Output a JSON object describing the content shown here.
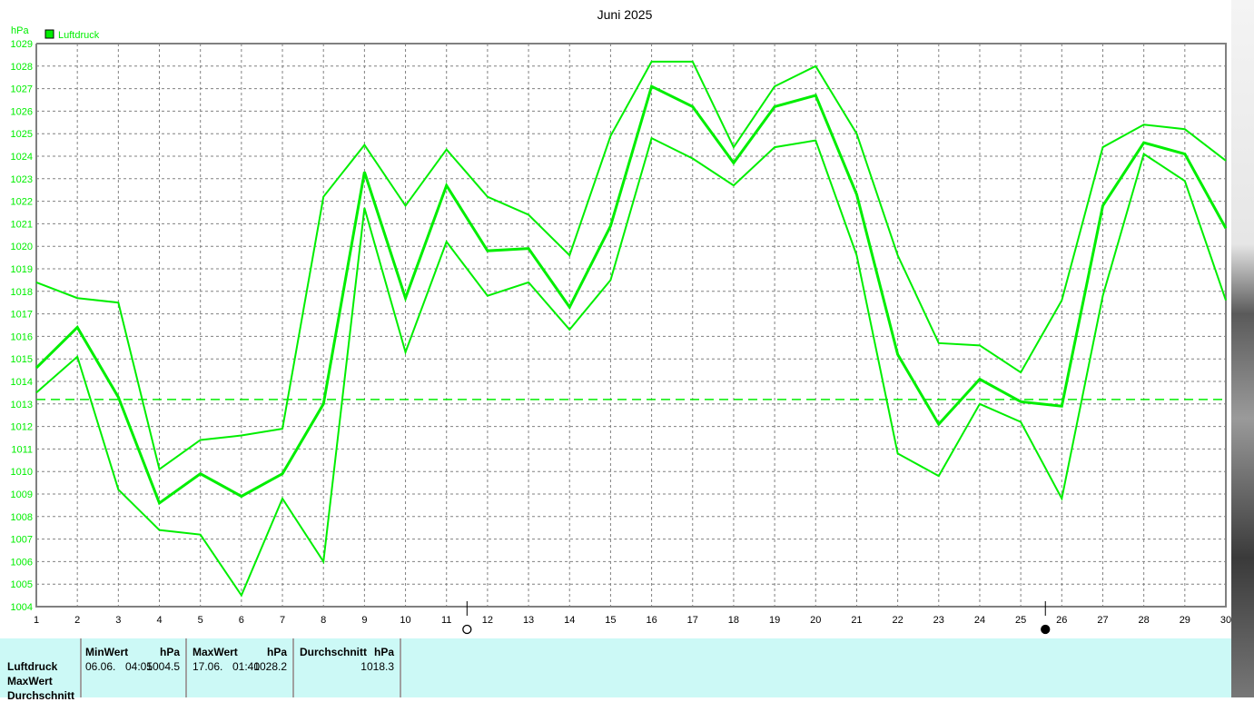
{
  "chart_data": {
    "type": "line",
    "title": "Juni 2025",
    "ylabel": "hPa",
    "legend": [
      "Luftdruck"
    ],
    "legend_placement": "top-left",
    "grid": true,
    "xlim": [
      1,
      30
    ],
    "ylim": [
      1004,
      1029
    ],
    "x": [
      1,
      2,
      3,
      4,
      5,
      6,
      7,
      8,
      9,
      10,
      11,
      12,
      13,
      14,
      15,
      16,
      17,
      18,
      19,
      20,
      21,
      22,
      23,
      24,
      25,
      26,
      27,
      28,
      29,
      30
    ],
    "series": [
      {
        "role": "max",
        "values": [
          1018.4,
          1017.7,
          1017.5,
          1010.1,
          1011.4,
          1011.6,
          1011.9,
          1022.2,
          1024.5,
          1021.8,
          1024.3,
          1022.2,
          1021.4,
          1019.6,
          1024.9,
          1028.2,
          1028.2,
          1024.4,
          1027.1,
          1028.0,
          1025.0,
          1019.6,
          1015.7,
          1015.6,
          1014.4,
          1017.6,
          1024.4,
          1025.4,
          1025.2,
          1023.8
        ]
      },
      {
        "role": "avg",
        "values": [
          1014.6,
          1016.4,
          1013.3,
          1008.6,
          1009.9,
          1008.9,
          1009.9,
          1013.0,
          1023.3,
          1017.7,
          1022.7,
          1019.8,
          1019.9,
          1017.3,
          1020.9,
          1027.1,
          1026.2,
          1023.7,
          1026.2,
          1026.7,
          1022.3,
          1015.2,
          1012.1,
          1014.1,
          1013.1,
          1012.9,
          1021.8,
          1024.6,
          1024.1,
          1020.8
        ]
      },
      {
        "role": "min",
        "values": [
          1013.5,
          1015.1,
          1009.2,
          1007.4,
          1007.2,
          1004.5,
          1008.8,
          1006.0,
          1021.7,
          1015.3,
          1020.2,
          1017.8,
          1018.4,
          1016.3,
          1018.5,
          1024.8,
          1023.9,
          1022.7,
          1024.4,
          1024.7,
          1019.6,
          1010.8,
          1009.8,
          1013.0,
          1012.2,
          1008.8,
          1017.8,
          1024.1,
          1022.9,
          1017.6
        ]
      }
    ],
    "reference_line": 1013.2,
    "moon_phases": [
      {
        "day": 11.5,
        "phase": "full-moon"
      },
      {
        "day": 25.6,
        "phase": "new-moon"
      }
    ],
    "colors": {
      "series": "#00ee00",
      "axis": "#808080",
      "grid": "#808080"
    }
  },
  "table": {
    "rows": [
      "Luftdruck",
      "MaxWert",
      "Durchschnitt"
    ],
    "min": {
      "header": "MinWert",
      "unit": "hPa",
      "date": "06.06.",
      "time": "04:05",
      "value": "1004.5"
    },
    "max": {
      "header": "MaxWert",
      "unit": "hPa",
      "date": "17.06.",
      "time": "01:40",
      "value": "1028.2"
    },
    "avg": {
      "header": "Durchschnitt",
      "unit": "hPa",
      "value": "1018.3"
    }
  }
}
